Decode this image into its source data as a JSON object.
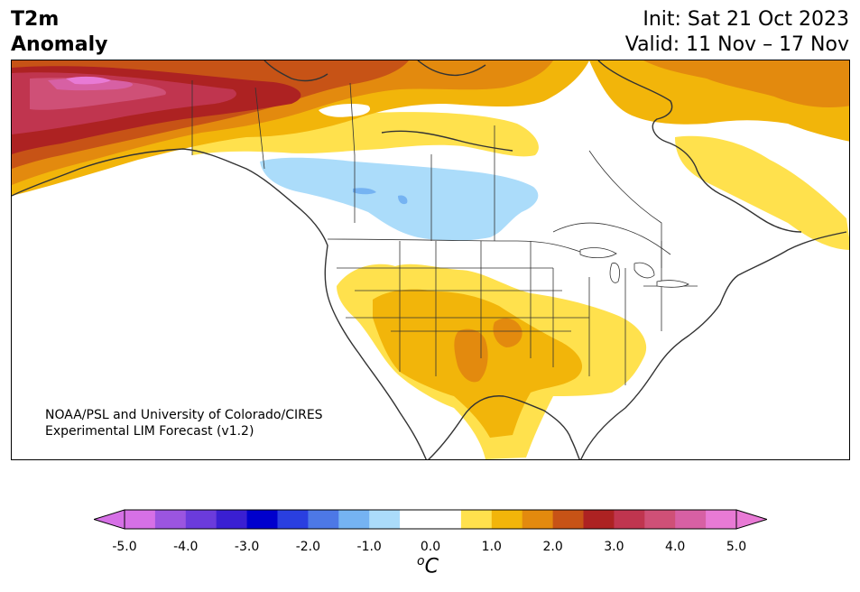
{
  "header": {
    "title_line1": "T2m",
    "title_line2": "Anomaly",
    "init": "Init: Sat 21 Oct 2023",
    "valid": "Valid: 11 Nov – 17 Nov"
  },
  "credit": {
    "line1": "NOAA/PSL and University of Colorado/CIRES",
    "line2": "Experimental LIM Forecast (v1.2)"
  },
  "colorbar": {
    "unit_base": "C",
    "unit_sup": "o",
    "ticks": [
      "-5.0",
      "-4.0",
      "-3.0",
      "-2.0",
      "-1.0",
      "0.0",
      "1.0",
      "2.0",
      "3.0",
      "4.0",
      "5.0"
    ],
    "colors": [
      "#d670e6",
      "#9b55e0",
      "#6b3bdc",
      "#3a1fd2",
      "#0000cd",
      "#2a3fe0",
      "#4d78e6",
      "#75b3f2",
      "#abdcfa",
      "#ffffff",
      "#ffffff",
      "#ffe14d",
      "#f2b50a",
      "#e38a0e",
      "#c75316",
      "#ad2222",
      "#c0354f",
      "#cf5077",
      "#d760a4",
      "#e87ad5"
    ],
    "min_color": "#d670e6",
    "max_color": "#e87ad5"
  }
}
